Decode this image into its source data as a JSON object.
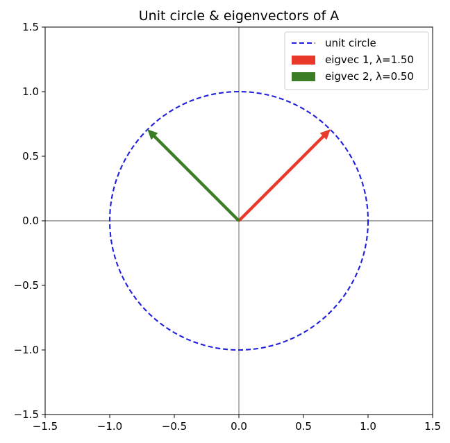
{
  "chart_data": {
    "type": "line",
    "title": "Unit circle & eigenvectors of A",
    "xlabel": "",
    "ylabel": "",
    "xlim": [
      -1.5,
      1.5
    ],
    "ylim": [
      -1.5,
      1.5
    ],
    "xticks": [
      -1.5,
      -1.0,
      -0.5,
      0.0,
      0.5,
      1.0,
      1.5
    ],
    "yticks": [
      -1.5,
      -1.0,
      -0.5,
      0.0,
      0.5,
      1.0,
      1.5
    ],
    "xtick_labels": [
      "−1.5",
      "−1.0",
      "−0.5",
      "0.0",
      "0.5",
      "1.0",
      "1.5"
    ],
    "ytick_labels": [
      "−1.5",
      "−1.0",
      "−0.5",
      "0.0",
      "0.5",
      "1.0",
      "1.5"
    ],
    "grid": false,
    "axis_lines_through_origin": true,
    "aspect": "equal",
    "legend_position": "top-right",
    "series": [
      {
        "name": "unit circle",
        "kind": "circle",
        "center": [
          0,
          0
        ],
        "radius": 1.0,
        "color": "#1f1fdc",
        "linestyle": "dashed"
      },
      {
        "name": "eigvec 1, λ=1.50",
        "kind": "arrow",
        "from": [
          0,
          0
        ],
        "to": [
          0.707,
          0.707
        ],
        "eigenvalue": 1.5,
        "color": "#e8392a"
      },
      {
        "name": "eigvec 2, λ=0.50",
        "kind": "arrow",
        "from": [
          0,
          0
        ],
        "to": [
          -0.707,
          0.707
        ],
        "eigenvalue": 0.5,
        "color": "#3a7d24"
      }
    ]
  }
}
